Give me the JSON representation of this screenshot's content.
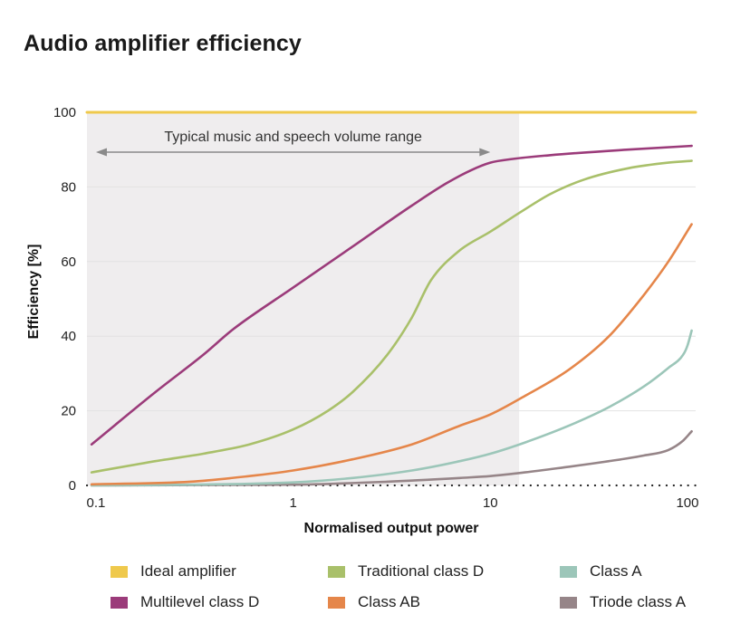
{
  "chart_data": {
    "type": "line",
    "title": "Audio amplifier efficiency",
    "xlabel": "Normalised output power",
    "ylabel": "Efficiency [%]",
    "xscale": "log",
    "xlim": [
      0.09,
      110
    ],
    "ylim": [
      0,
      100
    ],
    "xticks": [
      0.1,
      1,
      10,
      100
    ],
    "xtick_labels": [
      "0.1",
      "1",
      "10",
      "100"
    ],
    "yticks": [
      0,
      20,
      40,
      60,
      80,
      100
    ],
    "ytick_labels": [
      "0",
      "20",
      "40",
      "60",
      "80",
      "100"
    ],
    "grid": "horizontal",
    "legend_position": "bottom",
    "annotation": {
      "text": "Typical music and speech volume range",
      "x_range": [
        0.1,
        14
      ]
    },
    "series": [
      {
        "name": "Ideal amplifier",
        "color": "#efc94c",
        "x": [
          0.09,
          110
        ],
        "y": [
          100,
          100
        ]
      },
      {
        "name": "Multilevel class D",
        "color": "#9b3b7a",
        "x": [
          0.095,
          0.2,
          0.35,
          0.5,
          1,
          2,
          4,
          6,
          8,
          10,
          13,
          20,
          50,
          105
        ],
        "y": [
          11,
          25,
          35,
          42,
          53,
          64,
          75,
          81,
          84.5,
          86.5,
          87.5,
          88.5,
          90,
          91
        ]
      },
      {
        "name": "Traditional class D",
        "color": "#a9c06a",
        "x": [
          0.095,
          0.2,
          0.35,
          0.6,
          1,
          1.5,
          2,
          3,
          4,
          5,
          7,
          10,
          14,
          20,
          30,
          50,
          80,
          105
        ],
        "y": [
          3.5,
          6.5,
          8.5,
          11,
          15,
          20,
          25,
          35,
          45,
          55,
          63,
          68,
          73,
          78,
          82,
          85,
          86.5,
          87
        ]
      },
      {
        "name": "Class A",
        "color": "#9cc6b9",
        "x": [
          0.095,
          0.3,
          1,
          2,
          4,
          7,
          10,
          15,
          25,
          40,
          60,
          80,
          95,
          100,
          105
        ],
        "y": [
          0,
          0.2,
          0.8,
          2,
          4,
          6.5,
          8.5,
          11.5,
          16,
          21,
          26.5,
          31.5,
          35,
          37.5,
          41.5
        ]
      },
      {
        "name": "Class AB",
        "color": "#e5864a",
        "x": [
          0.095,
          0.3,
          0.6,
          1,
          2,
          4,
          7,
          10,
          15,
          25,
          40,
          60,
          80,
          105
        ],
        "y": [
          0.3,
          1,
          2.5,
          4,
          7,
          11,
          16,
          19,
          24,
          31,
          40,
          51,
          60,
          70
        ]
      },
      {
        "name": "Triode class A",
        "color": "#968588",
        "x": [
          0.095,
          1,
          3,
          7,
          10,
          15,
          25,
          40,
          60,
          80,
          95,
          105
        ],
        "y": [
          0,
          0.2,
          1,
          2,
          2.5,
          3.5,
          5,
          6.5,
          8,
          9.5,
          12,
          14.5
        ]
      },
      {
        "name": "",
        "color": "#222222",
        "dotted": true,
        "x": [
          0.09,
          110
        ],
        "y": [
          0,
          0
        ]
      }
    ]
  },
  "legend": [
    {
      "label": "Ideal amplifier",
      "color": "#efc94c"
    },
    {
      "label": "Traditional class D",
      "color": "#a9c06a"
    },
    {
      "label": "Class A",
      "color": "#9cc6b9"
    },
    {
      "label": "Multilevel class D",
      "color": "#9b3b7a"
    },
    {
      "label": "Class AB",
      "color": "#e5864a"
    },
    {
      "label": "Triode class A",
      "color": "#968588"
    }
  ]
}
